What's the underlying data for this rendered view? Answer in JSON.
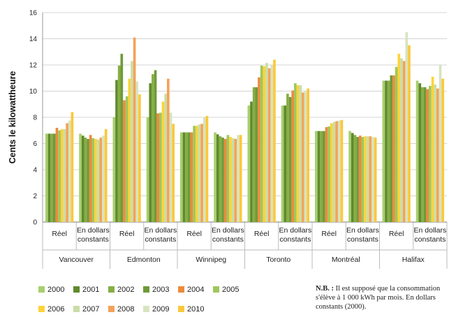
{
  "chart_data": {
    "type": "bar",
    "ylabel": "Cents le kilowattheure",
    "ylim": [
      0,
      16
    ],
    "yticks": [
      0,
      2,
      4,
      6,
      8,
      10,
      12,
      14,
      16
    ],
    "grid": true,
    "legend_position": "bottom",
    "groups": [
      {
        "city": "Vancouver",
        "subgroups": [
          {
            "label": "Réel",
            "values": [
              6.75,
              6.75,
              6.75,
              6.75,
              7.2,
              7.0,
              7.1,
              7.1,
              7.55,
              7.75,
              8.4
            ]
          },
          {
            "label": "En dollars constants",
            "values": [
              6.75,
              6.6,
              6.45,
              6.35,
              6.65,
              6.4,
              6.35,
              6.3,
              6.45,
              6.6,
              7.1
            ]
          }
        ]
      },
      {
        "city": "Edmonton",
        "subgroups": [
          {
            "label": "Réel",
            "values": [
              8.0,
              10.85,
              11.95,
              12.85,
              9.3,
              9.6,
              10.95,
              12.3,
              14.1,
              10.75,
              9.75
            ]
          },
          {
            "label": "En dollars constants",
            "values": [
              8.0,
              10.6,
              11.3,
              11.6,
              8.3,
              8.35,
              9.2,
              9.8,
              10.95,
              8.35,
              7.5
            ]
          }
        ]
      },
      {
        "city": "Winnipeg",
        "subgroups": [
          {
            "label": "Réel",
            "values": [
              6.85,
              6.85,
              6.85,
              6.85,
              6.85,
              7.35,
              7.35,
              7.45,
              7.5,
              8.0,
              8.1
            ]
          },
          {
            "label": "En dollars constants",
            "values": [
              6.85,
              6.7,
              6.55,
              6.45,
              6.35,
              6.65,
              6.5,
              6.4,
              6.35,
              6.65,
              6.65
            ]
          }
        ]
      },
      {
        "city": "Toronto",
        "subgroups": [
          {
            "label": "Réel",
            "values": [
              8.9,
              9.2,
              10.3,
              10.3,
              11.05,
              11.95,
              11.9,
              12.15,
              11.75,
              12.0,
              12.4
            ]
          },
          {
            "label": "En dollars constants",
            "values": [
              8.9,
              8.9,
              9.8,
              9.55,
              10.05,
              10.6,
              10.45,
              10.45,
              9.9,
              10.05,
              10.2
            ]
          }
        ]
      },
      {
        "city": "Montréal",
        "subgroups": [
          {
            "label": "Réel",
            "values": [
              6.95,
              6.95,
              6.95,
              6.95,
              7.25,
              7.3,
              7.55,
              7.65,
              7.7,
              7.75,
              7.8
            ]
          },
          {
            "label": "En dollars constants",
            "values": [
              6.95,
              6.8,
              6.65,
              6.5,
              6.6,
              6.5,
              6.55,
              6.55,
              6.55,
              6.5,
              6.45
            ]
          }
        ]
      },
      {
        "city": "Halifax",
        "subgroups": [
          {
            "label": "Réel",
            "values": [
              10.8,
              10.8,
              10.8,
              11.2,
              11.2,
              11.85,
              12.85,
              12.5,
              12.3,
              14.5,
              13.5
            ]
          },
          {
            "label": "En dollars constants",
            "values": [
              10.8,
              10.6,
              10.3,
              10.3,
              10.15,
              10.4,
              11.1,
              10.5,
              10.2,
              12.0,
              10.95
            ]
          }
        ]
      }
    ],
    "series": [
      {
        "name": "2000",
        "color": "#a8cf6e"
      },
      {
        "name": "2001",
        "color": "#5f8a2c"
      },
      {
        "name": "2002",
        "color": "#86ae45"
      },
      {
        "name": "2003",
        "color": "#6f9a38"
      },
      {
        "name": "2004",
        "color": "#ec8a3c"
      },
      {
        "name": "2005",
        "color": "#9fc75d"
      },
      {
        "name": "2006",
        "color": "#fdd33a"
      },
      {
        "name": "2007",
        "color": "#c9dea6"
      },
      {
        "name": "2008",
        "color": "#f4a259"
      },
      {
        "name": "2009",
        "color": "#d7e4bf"
      },
      {
        "name": "2010",
        "color": "#fcc83a"
      }
    ]
  },
  "note": {
    "title": "N.B. :",
    "text": "Il est supposé que la consommation s'élève à 1 000 kWh par mois. En dollars constants (2000)."
  }
}
